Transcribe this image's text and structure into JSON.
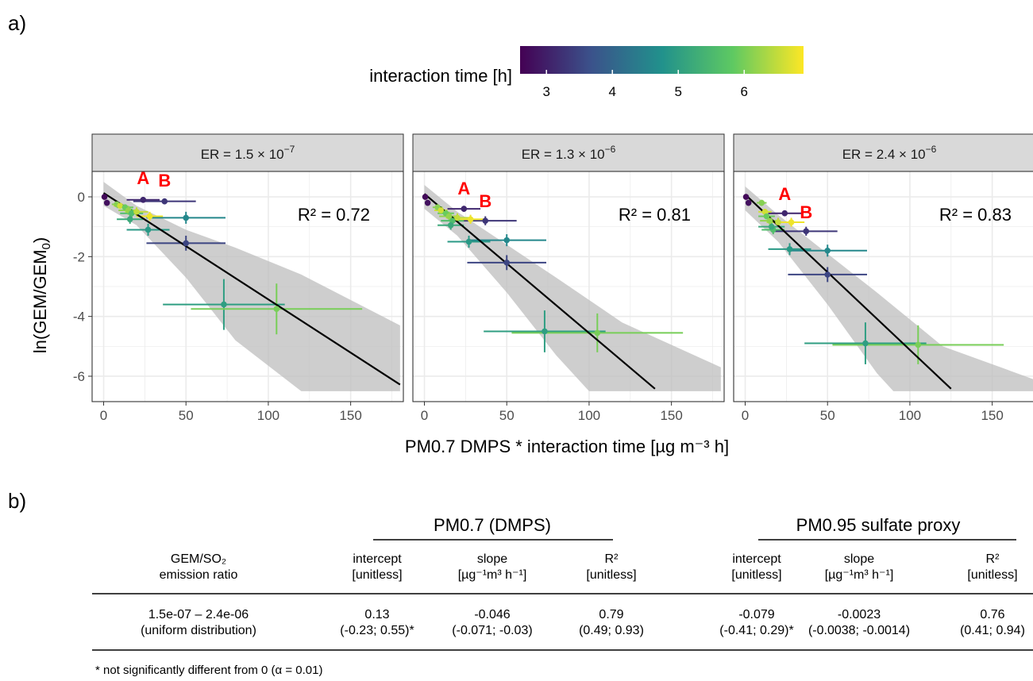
{
  "figure": {
    "panel_a_label": "a)",
    "panel_b_label": "b)"
  },
  "colors": {
    "line": "#000000",
    "ribbon": "#bdbdbd",
    "strip": "#d9d9d9",
    "grid": "#ebebeb",
    "highlight": "#ff0000"
  },
  "colorbar": {
    "title": "interaction time [h]",
    "min": 2.6,
    "max": 6.9,
    "ticks": [
      "3",
      "4",
      "5",
      "6"
    ],
    "tick_values": [
      3,
      4,
      5,
      6
    ]
  },
  "chart_data": {
    "type": "scatter",
    "ylabel_main": "ln(GEM/GEM",
    "ylabel_sub": "0",
    "ylabel_close": ")",
    "xlabel": "PM0.7 DMPS * interaction time [µg m⁻³ h]",
    "xlim": [
      -7,
      182
    ],
    "ylim": [
      -6.85,
      0.85
    ],
    "xticks": [
      "0",
      "50",
      "100",
      "150"
    ],
    "xtick_values": [
      0,
      50,
      100,
      150
    ],
    "yticks": [
      "0",
      "-2",
      "-4",
      "-6"
    ],
    "ytick_values": [
      0,
      -2,
      -4,
      -6
    ],
    "point_labels": [
      "A",
      "B"
    ],
    "panels": [
      {
        "strip_prefix": "ER =  1.5 × 10",
        "strip_exp": "−7",
        "r2": "R² = 0.72",
        "fit": {
          "x0": 0,
          "y0": 0.13,
          "x1": 180,
          "y1": -6.28
        },
        "ribbon": [
          [
            0,
            0.5
          ],
          [
            20,
            -0.3
          ],
          [
            50,
            -1.1
          ],
          [
            80,
            -1.7
          ],
          [
            120,
            -2.6
          ],
          [
            180,
            -4.3
          ],
          [
            180,
            -6.5
          ],
          [
            120,
            -6.5
          ],
          [
            80,
            -4.8
          ],
          [
            50,
            -2.7
          ],
          [
            20,
            -0.95
          ],
          [
            0,
            -0.3
          ]
        ],
        "points": [
          {
            "x": 0.5,
            "y": 0,
            "xe": 0.5,
            "ye": 0.05,
            "t": 2.7
          },
          {
            "x": 2,
            "y": -0.2,
            "xe": 1,
            "ye": 0.1,
            "t": 2.8
          },
          {
            "x": 24,
            "y": -0.1,
            "xe": 10,
            "ye": 0.1,
            "t": 3.1
          },
          {
            "x": 37,
            "y": -0.15,
            "xe": 19,
            "ye": 0.1,
            "t": 3.3
          },
          {
            "x": 8,
            "y": -0.25,
            "xe": 3,
            "ye": 0.1,
            "t": 6.1
          },
          {
            "x": 10,
            "y": -0.3,
            "xe": 4,
            "ye": 0.1,
            "t": 6.6
          },
          {
            "x": 13,
            "y": -0.35,
            "xe": 5,
            "ye": 0.1,
            "t": 5.9
          },
          {
            "x": 15,
            "y": -0.45,
            "xe": 6,
            "ye": 0.15,
            "t": 6.2
          },
          {
            "x": 17,
            "y": -0.55,
            "xe": 7,
            "ye": 0.15,
            "t": 5.6
          },
          {
            "x": 20,
            "y": -0.5,
            "xe": 7,
            "ye": 0.15,
            "t": 6.5
          },
          {
            "x": 28,
            "y": -0.65,
            "xe": 8,
            "ye": 0.15,
            "t": 6.8
          },
          {
            "x": 16,
            "y": -0.75,
            "xe": 8,
            "ye": 0.15,
            "t": 5.2
          },
          {
            "x": 50,
            "y": -0.7,
            "xe": 24,
            "ye": 0.2,
            "t": 4.6
          },
          {
            "x": 27,
            "y": -1.1,
            "xe": 13,
            "ye": 0.2,
            "t": 4.9
          },
          {
            "x": 50,
            "y": -1.55,
            "xe": 24,
            "ye": 0.25,
            "t": 3.5
          },
          {
            "x": 73,
            "y": -3.6,
            "xe": 37,
            "ye": 0.85,
            "t": 5.0
          },
          {
            "x": 105,
            "y": -3.75,
            "xe": 52,
            "ye": 0.85,
            "t": 6.0
          }
        ],
        "label_a": {
          "x": 24,
          "y": 0.42
        },
        "label_b": {
          "x": 37,
          "y": 0.35
        }
      },
      {
        "strip_prefix": "ER =  1.3 × 10",
        "strip_exp": "−6",
        "r2": "R² = 0.81",
        "fit": {
          "x0": 0,
          "y0": 0.1,
          "x1": 140,
          "y1": -6.42
        },
        "ribbon": [
          [
            0,
            0.4
          ],
          [
            20,
            -0.5
          ],
          [
            50,
            -1.6
          ],
          [
            80,
            -2.7
          ],
          [
            120,
            -4.2
          ],
          [
            180,
            -5.7
          ],
          [
            180,
            -6.5
          ],
          [
            100,
            -6.5
          ],
          [
            80,
            -5.3
          ],
          [
            50,
            -3.2
          ],
          [
            20,
            -1.3
          ],
          [
            0,
            -0.4
          ]
        ],
        "points": [
          {
            "x": 0.5,
            "y": 0,
            "xe": 0.5,
            "ye": 0.05,
            "t": 2.7
          },
          {
            "x": 2,
            "y": -0.2,
            "xe": 1,
            "ye": 0.1,
            "t": 2.8
          },
          {
            "x": 24,
            "y": -0.4,
            "xe": 10,
            "ye": 0.1,
            "t": 3.1
          },
          {
            "x": 37,
            "y": -0.8,
            "xe": 19,
            "ye": 0.15,
            "t": 3.3
          },
          {
            "x": 8,
            "y": -0.35,
            "xe": 3,
            "ye": 0.1,
            "t": 6.1
          },
          {
            "x": 10,
            "y": -0.45,
            "xe": 4,
            "ye": 0.1,
            "t": 6.6
          },
          {
            "x": 13,
            "y": -0.55,
            "xe": 5,
            "ye": 0.1,
            "t": 5.9
          },
          {
            "x": 15,
            "y": -0.65,
            "xe": 6,
            "ye": 0.15,
            "t": 6.2
          },
          {
            "x": 17,
            "y": -0.8,
            "xe": 7,
            "ye": 0.15,
            "t": 5.6
          },
          {
            "x": 20,
            "y": -0.7,
            "xe": 7,
            "ye": 0.15,
            "t": 6.5
          },
          {
            "x": 28,
            "y": -0.75,
            "xe": 8,
            "ye": 0.15,
            "t": 6.8
          },
          {
            "x": 16,
            "y": -0.95,
            "xe": 8,
            "ye": 0.15,
            "t": 5.2
          },
          {
            "x": 50,
            "y": -1.45,
            "xe": 24,
            "ye": 0.2,
            "t": 4.6
          },
          {
            "x": 27,
            "y": -1.5,
            "xe": 13,
            "ye": 0.2,
            "t": 4.9
          },
          {
            "x": 50,
            "y": -2.2,
            "xe": 24,
            "ye": 0.25,
            "t": 3.5
          },
          {
            "x": 73,
            "y": -4.5,
            "xe": 37,
            "ye": 0.7,
            "t": 5.0
          },
          {
            "x": 105,
            "y": -4.55,
            "xe": 52,
            "ye": 0.65,
            "t": 6.0
          }
        ],
        "label_a": {
          "x": 24,
          "y": 0.08
        },
        "label_b": {
          "x": 37,
          "y": -0.35
        }
      },
      {
        "strip_prefix": "ER =  2.4 × 10",
        "strip_exp": "−6",
        "r2": "R² = 0.83",
        "fit": {
          "x0": 0,
          "y0": 0.08,
          "x1": 125,
          "y1": -6.42
        },
        "ribbon": [
          [
            0,
            0.35
          ],
          [
            20,
            -0.6
          ],
          [
            50,
            -1.9
          ],
          [
            80,
            -3.2
          ],
          [
            120,
            -5.0
          ],
          [
            180,
            -6.2
          ],
          [
            180,
            -6.5
          ],
          [
            90,
            -6.5
          ],
          [
            80,
            -5.9
          ],
          [
            50,
            -3.6
          ],
          [
            20,
            -1.5
          ],
          [
            0,
            -0.45
          ]
        ],
        "points": [
          {
            "x": 0.5,
            "y": 0,
            "xe": 0.5,
            "ye": 0.05,
            "t": 2.7
          },
          {
            "x": 2,
            "y": -0.2,
            "xe": 1,
            "ye": 0.1,
            "t": 2.8
          },
          {
            "x": 24,
            "y": -0.55,
            "xe": 10,
            "ye": 0.1,
            "t": 3.1
          },
          {
            "x": 37,
            "y": -1.15,
            "xe": 19,
            "ye": 0.15,
            "t": 3.3
          },
          {
            "x": 10,
            "y": -0.2,
            "xe": 3,
            "ye": 0.1,
            "t": 6.1
          },
          {
            "x": 12,
            "y": -0.5,
            "xe": 4,
            "ye": 0.1,
            "t": 6.6
          },
          {
            "x": 13,
            "y": -0.65,
            "xe": 5,
            "ye": 0.1,
            "t": 5.9
          },
          {
            "x": 15,
            "y": -0.8,
            "xe": 6,
            "ye": 0.15,
            "t": 6.2
          },
          {
            "x": 17,
            "y": -1.1,
            "xe": 7,
            "ye": 0.15,
            "t": 5.6
          },
          {
            "x": 20,
            "y": -0.85,
            "xe": 7,
            "ye": 0.15,
            "t": 6.5
          },
          {
            "x": 28,
            "y": -0.85,
            "xe": 8,
            "ye": 0.15,
            "t": 6.8
          },
          {
            "x": 16,
            "y": -1.0,
            "xe": 8,
            "ye": 0.15,
            "t": 5.2
          },
          {
            "x": 50,
            "y": -1.8,
            "xe": 24,
            "ye": 0.2,
            "t": 4.6
          },
          {
            "x": 27,
            "y": -1.75,
            "xe": 13,
            "ye": 0.2,
            "t": 4.9
          },
          {
            "x": 50,
            "y": -2.6,
            "xe": 24,
            "ye": 0.25,
            "t": 3.5
          },
          {
            "x": 73,
            "y": -4.9,
            "xe": 37,
            "ye": 0.7,
            "t": 5.0
          },
          {
            "x": 105,
            "y": -4.95,
            "xe": 52,
            "ye": 0.65,
            "t": 6.0
          }
        ],
        "label_a": {
          "x": 24,
          "y": -0.1
        },
        "label_b": {
          "x": 37,
          "y": -0.72
        }
      }
    ]
  },
  "table": {
    "group1": "PM0.7 (DMPS)",
    "group2": "PM0.95 sulfate proxy",
    "col0_h1": "GEM/SO₂",
    "col0_h2": "emission ratio",
    "cols": [
      {
        "h1": "intercept",
        "h2": "[unitless]",
        "v1": "0.13",
        "v2": "(-0.23; 0.55)*"
      },
      {
        "h1": "slope",
        "h2": "[µg⁻¹m³ h⁻¹]",
        "v1": "-0.046",
        "v2": "(-0.071; -0.03)"
      },
      {
        "h1": "R²",
        "h2": "[unitless]",
        "v1": "0.79",
        "v2": "(0.49; 0.93)"
      },
      {
        "h1": "intercept",
        "h2": "[unitless]",
        "v1": "-0.079",
        "v2": "(-0.41; 0.29)*"
      },
      {
        "h1": "slope",
        "h2": "[µg⁻¹m³ h⁻¹]",
        "v1": "-0.0023",
        "v2": "(-0.0038; -0.0014)"
      },
      {
        "h1": "R²",
        "h2": "[unitless]",
        "v1": "0.76",
        "v2": "(0.41; 0.94)"
      }
    ],
    "row_h1": "1.5e-07 – 2.4e-06",
    "row_h2": "(uniform distribution)",
    "footnote": "* not significantly different from 0 (α = 0.01)"
  }
}
